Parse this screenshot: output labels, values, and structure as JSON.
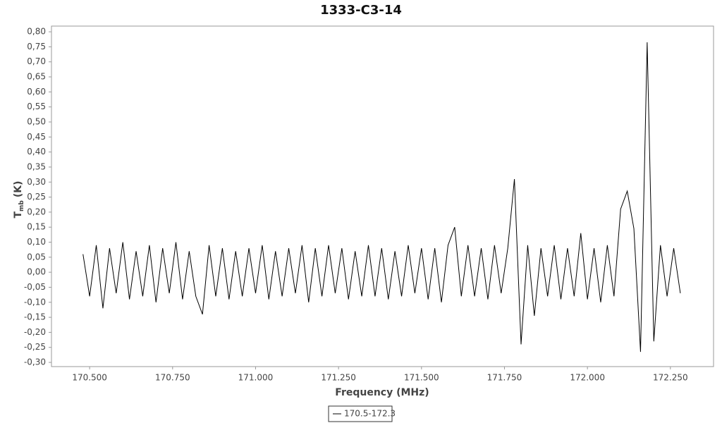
{
  "chart_data": {
    "type": "line",
    "title": "1333-C3-14",
    "xlabel": "Frequency (MHz)",
    "ylabel": {
      "main": "T",
      "sub": "mb",
      "unit": "(K)"
    },
    "xlim": [
      170.385,
      172.38
    ],
    "ylim": [
      -0.314,
      0.819
    ],
    "xticks": [
      {
        "value": 170.5,
        "label": "170.500"
      },
      {
        "value": 170.75,
        "label": "170.750"
      },
      {
        "value": 171,
        "label": "171.000"
      },
      {
        "value": 171.25,
        "label": "171.250"
      },
      {
        "value": 171.5,
        "label": "171.500"
      },
      {
        "value": 171.75,
        "label": "171.750"
      },
      {
        "value": 172,
        "label": "172.000"
      },
      {
        "value": 172.25,
        "label": "172.250"
      }
    ],
    "yticks": [
      {
        "value": 0.8,
        "label": "0,80"
      },
      {
        "value": 0.75,
        "label": "0,75"
      },
      {
        "value": 0.7,
        "label": "0,70"
      },
      {
        "value": 0.65,
        "label": "0,65"
      },
      {
        "value": 0.6,
        "label": "0,60"
      },
      {
        "value": 0.55,
        "label": "0,55"
      },
      {
        "value": 0.5,
        "label": "0,50"
      },
      {
        "value": 0.45,
        "label": "0,45"
      },
      {
        "value": 0.4,
        "label": "0,40"
      },
      {
        "value": 0.35,
        "label": "0,35"
      },
      {
        "value": 0.3,
        "label": "0,30"
      },
      {
        "value": 0.25,
        "label": "0,25"
      },
      {
        "value": 0.2,
        "label": "0,20"
      },
      {
        "value": 0.15,
        "label": "0,15"
      },
      {
        "value": 0.1,
        "label": "0,10"
      },
      {
        "value": 0.05,
        "label": "0,05"
      },
      {
        "value": 0,
        "label": "0,00"
      },
      {
        "value": -0.05,
        "label": "-0,05"
      },
      {
        "value": -0.1,
        "label": "-0,10"
      },
      {
        "value": -0.15,
        "label": "-0,15"
      },
      {
        "value": -0.2,
        "label": "-0,20"
      },
      {
        "value": -0.25,
        "label": "-0,25"
      },
      {
        "value": -0.3,
        "label": "-0,30"
      }
    ],
    "grid": false,
    "x": [
      170.48,
      170.5,
      170.52,
      170.54,
      170.56,
      170.58,
      170.6,
      170.62,
      170.64,
      170.66,
      170.68,
      170.7,
      170.72,
      170.74,
      170.76,
      170.78,
      170.8,
      170.82,
      170.84,
      170.86,
      170.88,
      170.9,
      170.92,
      170.94,
      170.96,
      170.98,
      171.0,
      171.02,
      171.04,
      171.06,
      171.08,
      171.1,
      171.12,
      171.14,
      171.16,
      171.18,
      171.2,
      171.22,
      171.24,
      171.26,
      171.28,
      171.3,
      171.32,
      171.34,
      171.36,
      171.38,
      171.4,
      171.42,
      171.44,
      171.46,
      171.48,
      171.5,
      171.52,
      171.54,
      171.56,
      171.58,
      171.6,
      171.62,
      171.64,
      171.66,
      171.68,
      171.7,
      171.72,
      171.74,
      171.76,
      171.78,
      171.8,
      171.82,
      171.84,
      171.86,
      171.88,
      171.9,
      171.92,
      171.94,
      171.96,
      171.98,
      172.0,
      172.02,
      172.04,
      172.06,
      172.08,
      172.1,
      172.12,
      172.14,
      172.16,
      172.18,
      172.2,
      172.22,
      172.24,
      172.26,
      172.28
    ],
    "series": [
      {
        "name": "170.5-172.3",
        "color": "#000000",
        "values": [
          0.06,
          -0.08,
          0.09,
          -0.12,
          0.08,
          -0.07,
          0.1,
          -0.09,
          0.07,
          -0.08,
          0.09,
          -0.1,
          0.08,
          -0.07,
          0.1,
          -0.09,
          0.07,
          -0.08,
          -0.14,
          0.09,
          -0.08,
          0.08,
          -0.09,
          0.07,
          -0.08,
          0.08,
          -0.07,
          0.09,
          -0.09,
          0.07,
          -0.08,
          0.08,
          -0.07,
          0.09,
          -0.1,
          0.08,
          -0.08,
          0.09,
          -0.07,
          0.08,
          -0.09,
          0.07,
          -0.08,
          0.09,
          -0.08,
          0.08,
          -0.09,
          0.07,
          -0.08,
          0.09,
          -0.07,
          0.08,
          -0.09,
          0.08,
          -0.1,
          0.09,
          0.15,
          -0.08,
          0.09,
          -0.08,
          0.08,
          -0.09,
          0.09,
          -0.07,
          0.08,
          0.31,
          -0.24,
          0.09,
          -0.145,
          0.08,
          -0.08,
          0.09,
          -0.09,
          0.08,
          -0.08,
          0.13,
          -0.09,
          0.08,
          -0.1,
          0.09,
          -0.08,
          0.21,
          0.27,
          0.145,
          -0.265,
          0.765,
          -0.23,
          0.09,
          -0.08,
          0.08,
          -0.07
        ]
      }
    ]
  }
}
